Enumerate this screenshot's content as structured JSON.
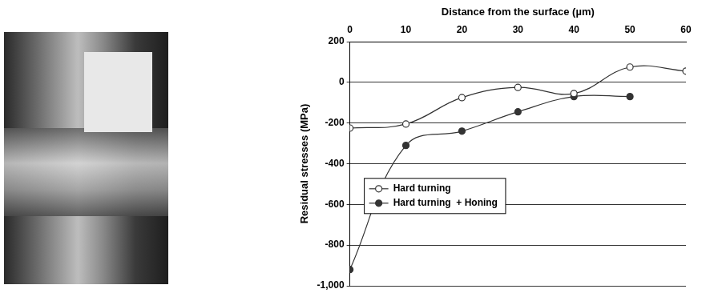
{
  "chart_data": {
    "type": "line",
    "x_label": "Distance from the surface (µm)",
    "y_label": "Residual stresses (MPa)",
    "x": [
      0,
      10,
      20,
      30,
      40,
      50,
      60
    ],
    "series": [
      {
        "name": "Hard turning",
        "color": "#333333",
        "marker": "circle-open",
        "values": [
          -225,
          -205,
          -75,
          -25,
          -55,
          75,
          55
        ]
      },
      {
        "name": "Hard turning  + Honing",
        "color": "#333333",
        "marker": "circle",
        "values": [
          -920,
          -310,
          -240,
          -145,
          -70,
          -70,
          null
        ]
      }
    ],
    "xlim": [
      0,
      60
    ],
    "xticks": [
      0,
      10,
      20,
      30,
      40,
      50,
      60
    ],
    "ylim": [
      -1000,
      200
    ],
    "yticks": [
      -1000,
      -800,
      -600,
      -400,
      -200,
      0,
      200
    ],
    "grid": true,
    "legend": "left"
  }
}
